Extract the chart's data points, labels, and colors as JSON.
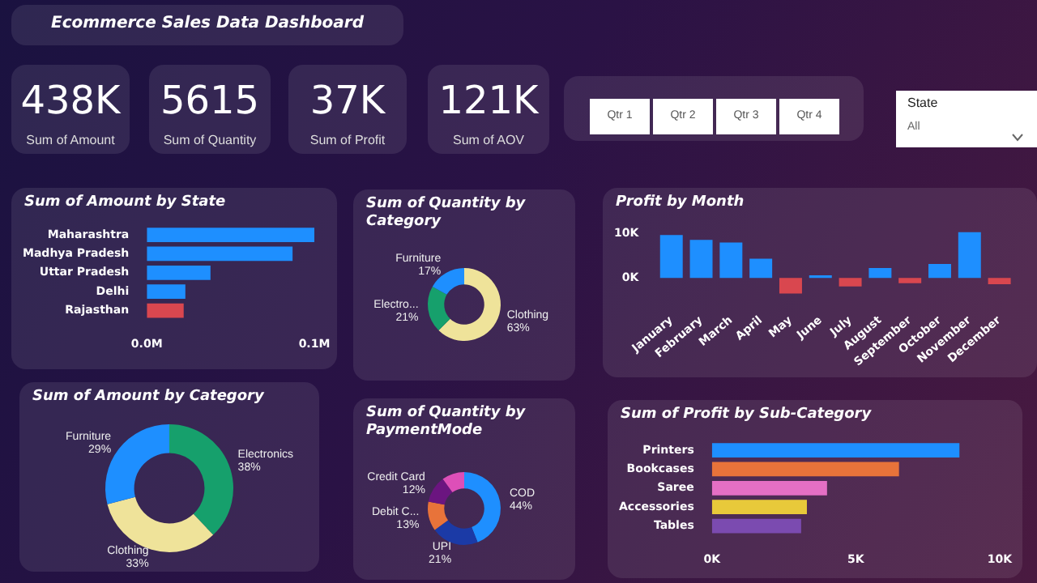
{
  "chart_data": [
    {
      "type": "other",
      "title": "Ecommerce Sales Data Dashboard",
      "annotations": [
        "438K",
        "Sum of Amount",
        "5615",
        "Sum of Quantity",
        "37K",
        "Sum of Profit",
        "121K",
        "Sum of AOV",
        "Qtr 1",
        "Qtr 2",
        "Qtr 3",
        "Qtr 4",
        "State",
        "All"
      ]
    },
    {
      "type": "bar",
      "title": "Sum of Amount by State",
      "orientation": "horizontal",
      "categories": [
        "Maharashtra",
        "Madhya Pradesh",
        "Uttar Pradesh",
        "Delhi",
        "Rajasthan"
      ],
      "values": [
        0.1,
        0.087,
        0.038,
        0.023,
        0.022
      ],
      "colors": [
        "#1e8fff",
        "#1e8fff",
        "#1e8fff",
        "#1e8fff",
        "#d9474f"
      ],
      "xlim": [
        0,
        0.1
      ],
      "xticks": [
        {
          "value": 0,
          "label": "0.0M"
        },
        {
          "value": 0.1,
          "label": "0.1M"
        }
      ]
    },
    {
      "type": "donut",
      "title": "Sum of Quantity by Category",
      "categories": [
        "Clothing",
        "Electro...",
        "Furniture"
      ],
      "values": [
        63,
        21,
        17
      ],
      "value_labels": [
        "63%",
        "21%",
        "17%"
      ],
      "colors": [
        "#efe39a",
        "#16a06c",
        "#1e8fff"
      ]
    },
    {
      "type": "bar",
      "title": "Profit by Month",
      "categories": [
        "January",
        "February",
        "March",
        "April",
        "May",
        "June",
        "July",
        "August",
        "September",
        "October",
        "November",
        "December"
      ],
      "values": [
        9600,
        8500,
        7900,
        4300,
        -3500,
        600,
        -1900,
        2200,
        -1200,
        3100,
        10200,
        -1400
      ],
      "colors": [
        "#1e8fff",
        "#1e8fff",
        "#1e8fff",
        "#1e8fff",
        "#d9474f",
        "#1e8fff",
        "#d9474f",
        "#1e8fff",
        "#d9474f",
        "#1e8fff",
        "#1e8fff",
        "#d9474f"
      ],
      "ylim": [
        -4000,
        11000
      ],
      "yticks": [
        {
          "value": 0,
          "label": "0K"
        },
        {
          "value": 10000,
          "label": "10K"
        }
      ]
    },
    {
      "type": "donut",
      "title": "Sum of Amount by Category",
      "categories": [
        "Electronics",
        "Clothing",
        "Furniture"
      ],
      "values": [
        38,
        33,
        29
      ],
      "value_labels": [
        "38%",
        "33%",
        "29%"
      ],
      "colors": [
        "#16a06c",
        "#efe39a",
        "#1e8fff"
      ]
    },
    {
      "type": "donut",
      "title": "Sum of Quantity by PaymentMode",
      "categories": [
        "COD",
        "UPI",
        "Debit C...",
        "Credit Card",
        null
      ],
      "values": [
        44,
        21,
        13,
        12,
        10
      ],
      "value_labels": [
        "44%",
        "21%",
        "13%",
        "12%",
        null
      ],
      "colors": [
        "#1e8fff",
        "#1b3aa6",
        "#e8733a",
        "#6b1580",
        "#dd4fb8"
      ]
    },
    {
      "type": "bar",
      "title": "Sum of Profit by Sub-Category",
      "orientation": "horizontal",
      "categories": [
        "Printers",
        "Bookcases",
        "Saree",
        "Accessories",
        "Tables"
      ],
      "values": [
        8600,
        6500,
        4000,
        3300,
        3100
      ],
      "colors": [
        "#1e8fff",
        "#e8733a",
        "#e46fc4",
        "#e8c93a",
        "#7b4bb0"
      ],
      "xlim": [
        0,
        10000
      ],
      "xticks": [
        {
          "value": 0,
          "label": "0K"
        },
        {
          "value": 5000,
          "label": "5K"
        },
        {
          "value": 10000,
          "label": "10K"
        }
      ]
    }
  ]
}
